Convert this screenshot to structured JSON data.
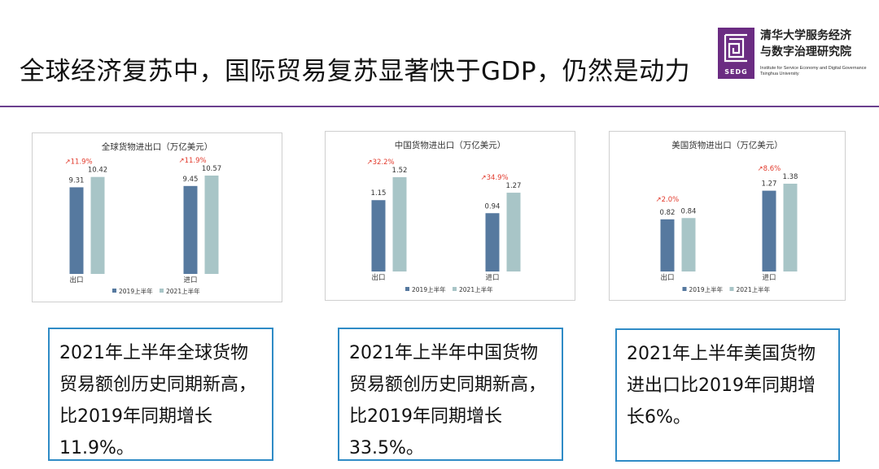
{
  "slide": {
    "title": "全球经济复苏中，国际贸易复苏显著快于GDP，仍然是动力"
  },
  "logo": {
    "abbr": "SEDG",
    "org_cn_line1": "清华大学服务经济",
    "org_cn_line2": "与数字治理研究院",
    "org_en_line1": "Institute for Service Economy and Digital Governance",
    "org_en_line2": "Tsinghua University"
  },
  "colors": {
    "accent_rule": "#6b3f8e",
    "bar_2019": "#56799f",
    "bar_2021": "#a8c5c7",
    "growth_label": "#e23a2c",
    "box_border": "#2f8bc6"
  },
  "chart_data": [
    {
      "type": "bar",
      "title": "全球货物进出口（万亿美元）",
      "categories": [
        "出口",
        "进口"
      ],
      "series": [
        {
          "name": "2019上半年",
          "values": [
            9.31,
            9.45
          ],
          "color": "#56799f"
        },
        {
          "name": "2021上半年",
          "values": [
            10.42,
            10.57
          ],
          "color": "#a8c5c7"
        }
      ],
      "growth_labels": [
        "11.9%",
        "11.9%"
      ],
      "value_labels": [
        [
          "9.31",
          "9.45"
        ],
        [
          "10.42",
          "10.57"
        ]
      ],
      "grid": false,
      "legend": "bottom-center"
    },
    {
      "type": "bar",
      "title": "中国货物进出口（万亿美元）",
      "categories": [
        "出口",
        "进口"
      ],
      "series": [
        {
          "name": "2019上半年",
          "values": [
            1.15,
            0.94
          ],
          "color": "#56799f"
        },
        {
          "name": "2021上半年",
          "values": [
            1.52,
            1.27
          ],
          "color": "#a8c5c7"
        }
      ],
      "growth_labels": [
        "32.2%",
        "34.9%"
      ],
      "value_labels": [
        [
          "1.15",
          "0.94"
        ],
        [
          "1.52",
          "1.27"
        ]
      ],
      "grid": false,
      "legend": "bottom-center"
    },
    {
      "type": "bar",
      "title": "美国货物进出口（万亿美元）",
      "categories": [
        "出口",
        "进口"
      ],
      "series": [
        {
          "name": "2019上半年",
          "values": [
            0.82,
            1.27
          ],
          "color": "#56799f"
        },
        {
          "name": "2021上半年",
          "values": [
            0.84,
            1.38
          ],
          "color": "#a8c5c7"
        }
      ],
      "growth_labels": [
        "2.0%",
        "8.6%"
      ],
      "value_labels": [
        [
          "0.82",
          "1.27"
        ],
        [
          "0.84",
          "1.38"
        ]
      ],
      "grid": false,
      "legend": "bottom-center"
    }
  ],
  "captions": {
    "global": "2021年上半年全球货物贸易额创历史同期新高，比2019年同期增长11.9%。",
    "china": "2021年上半年中国货物贸易额创历史同期新高，比2019年同期增长33.5%。",
    "us": "2021年上半年美国货物进出口比2019年同期增长6%。"
  }
}
